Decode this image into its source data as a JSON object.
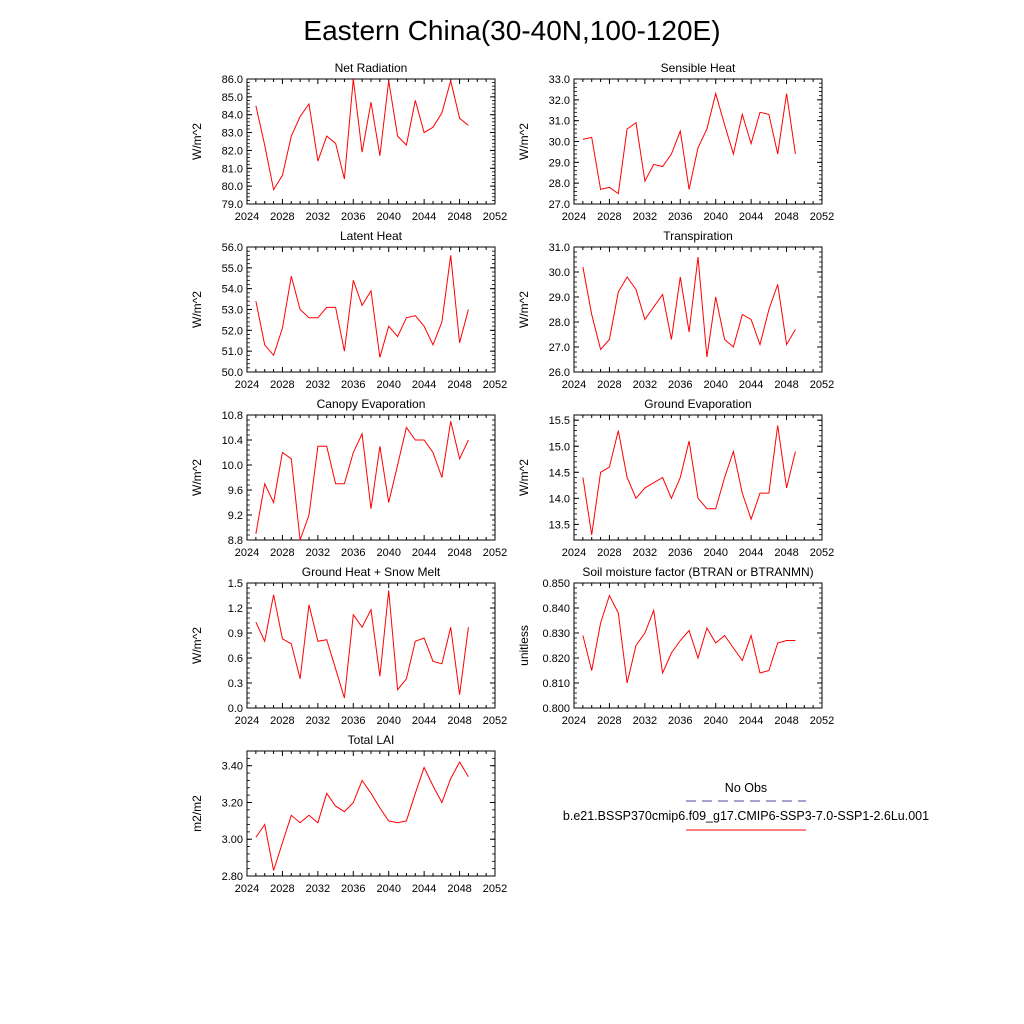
{
  "figure": {
    "title": "Eastern China(30-40N,100-120E)"
  },
  "legend": {
    "obs_label": "No Obs",
    "obs_color": "#4a4aa8",
    "model_label": "b.e21.BSSP370cmip6.f09_g17.CMIP6-SSP3-7.0-SSP1-2.6Lu.001",
    "model_color": "#ff0000"
  },
  "chart_data": [
    {
      "type": "line",
      "title": "Net Radiation",
      "ylabel": "W/m^2",
      "xlim": [
        2024,
        2052
      ],
      "xticks": [
        2024,
        2028,
        2032,
        2036,
        2040,
        2044,
        2048,
        2052
      ],
      "ylim": [
        79.0,
        86.0
      ],
      "yticks": [
        "79.0",
        "80.0",
        "81.0",
        "82.0",
        "83.0",
        "84.0",
        "85.0",
        "86.0"
      ],
      "x": [
        2025,
        2026,
        2027,
        2028,
        2029,
        2030,
        2031,
        2032,
        2033,
        2034,
        2035,
        2036,
        2037,
        2038,
        2039,
        2040,
        2041,
        2042,
        2043,
        2044,
        2045,
        2046,
        2047,
        2048,
        2049
      ],
      "series": [
        {
          "color": "#ff0000",
          "values": [
            84.5,
            82.3,
            79.8,
            80.6,
            82.8,
            83.9,
            84.6,
            81.4,
            82.8,
            82.4,
            80.4,
            86.0,
            81.9,
            84.7,
            81.7,
            85.9,
            82.8,
            82.3,
            84.8,
            83.0,
            83.3,
            84.1,
            85.9,
            83.8,
            83.4
          ]
        }
      ]
    },
    {
      "type": "line",
      "title": "Sensible Heat",
      "ylabel": "W/m^2",
      "xlim": [
        2024,
        2052
      ],
      "xticks": [
        2024,
        2028,
        2032,
        2036,
        2040,
        2044,
        2048,
        2052
      ],
      "ylim": [
        27.0,
        33.0
      ],
      "yticks": [
        "27.0",
        "28.0",
        "29.0",
        "30.0",
        "31.0",
        "32.0",
        "33.0"
      ],
      "x": [
        2025,
        2026,
        2027,
        2028,
        2029,
        2030,
        2031,
        2032,
        2033,
        2034,
        2035,
        2036,
        2037,
        2038,
        2039,
        2040,
        2041,
        2042,
        2043,
        2044,
        2045,
        2046,
        2047,
        2048,
        2049
      ],
      "series": [
        {
          "color": "#ff0000",
          "values": [
            30.1,
            30.2,
            27.7,
            27.8,
            27.5,
            30.6,
            30.9,
            28.1,
            28.9,
            28.8,
            29.4,
            30.5,
            27.7,
            29.7,
            30.6,
            32.3,
            30.8,
            29.4,
            31.3,
            29.9,
            31.4,
            31.3,
            29.4,
            32.3,
            29.4
          ]
        }
      ]
    },
    {
      "type": "line",
      "title": "Latent Heat",
      "ylabel": "W/m^2",
      "xlim": [
        2024,
        2052
      ],
      "xticks": [
        2024,
        2028,
        2032,
        2036,
        2040,
        2044,
        2048,
        2052
      ],
      "ylim": [
        50.0,
        56.0
      ],
      "yticks": [
        "50.0",
        "51.0",
        "52.0",
        "53.0",
        "54.0",
        "55.0",
        "56.0"
      ],
      "x": [
        2025,
        2026,
        2027,
        2028,
        2029,
        2030,
        2031,
        2032,
        2033,
        2034,
        2035,
        2036,
        2037,
        2038,
        2039,
        2040,
        2041,
        2042,
        2043,
        2044,
        2045,
        2046,
        2047,
        2048,
        2049
      ],
      "series": [
        {
          "color": "#ff0000",
          "values": [
            53.4,
            51.3,
            50.8,
            52.1,
            54.6,
            53.0,
            52.6,
            52.6,
            53.1,
            53.1,
            51.0,
            54.4,
            53.2,
            53.9,
            50.7,
            52.2,
            51.7,
            52.6,
            52.7,
            52.2,
            51.3,
            52.4,
            55.6,
            51.4,
            53.0
          ]
        }
      ]
    },
    {
      "type": "line",
      "title": "Transpiration",
      "ylabel": "W/m^2",
      "xlim": [
        2024,
        2052
      ],
      "xticks": [
        2024,
        2028,
        2032,
        2036,
        2040,
        2044,
        2048,
        2052
      ],
      "ylim": [
        26.0,
        31.0
      ],
      "yticks": [
        "26.0",
        "27.0",
        "28.0",
        "29.0",
        "30.0",
        "31.0"
      ],
      "x": [
        2025,
        2026,
        2027,
        2028,
        2029,
        2030,
        2031,
        2032,
        2033,
        2034,
        2035,
        2036,
        2037,
        2038,
        2039,
        2040,
        2041,
        2042,
        2043,
        2044,
        2045,
        2046,
        2047,
        2048,
        2049
      ],
      "series": [
        {
          "color": "#ff0000",
          "values": [
            30.2,
            28.3,
            26.9,
            27.3,
            29.2,
            29.8,
            29.3,
            28.1,
            28.6,
            29.1,
            27.3,
            29.8,
            27.6,
            30.6,
            26.6,
            29.0,
            27.3,
            27.0,
            28.3,
            28.1,
            27.1,
            28.5,
            29.5,
            27.1,
            27.7
          ]
        }
      ]
    },
    {
      "type": "line",
      "title": "Canopy Evaporation",
      "ylabel": "W/m^2",
      "xlim": [
        2024,
        2052
      ],
      "xticks": [
        2024,
        2028,
        2032,
        2036,
        2040,
        2044,
        2048,
        2052
      ],
      "ylim": [
        8.8,
        10.8
      ],
      "yticks": [
        "8.8",
        "9.2",
        "9.6",
        "10.0",
        "10.4",
        "10.8"
      ],
      "x": [
        2025,
        2026,
        2027,
        2028,
        2029,
        2030,
        2031,
        2032,
        2033,
        2034,
        2035,
        2036,
        2037,
        2038,
        2039,
        2040,
        2041,
        2042,
        2043,
        2044,
        2045,
        2046,
        2047,
        2048,
        2049
      ],
      "series": [
        {
          "color": "#ff0000",
          "values": [
            8.9,
            9.7,
            9.4,
            10.2,
            10.1,
            8.8,
            9.2,
            10.3,
            10.3,
            9.7,
            9.7,
            10.2,
            10.5,
            9.3,
            10.3,
            9.4,
            10.0,
            10.6,
            10.4,
            10.4,
            10.2,
            9.8,
            10.7,
            10.1,
            10.4
          ]
        }
      ]
    },
    {
      "type": "line",
      "title": "Ground Evaporation",
      "ylabel": "W/m^2",
      "xlim": [
        2024,
        2052
      ],
      "xticks": [
        2024,
        2028,
        2032,
        2036,
        2040,
        2044,
        2048,
        2052
      ],
      "ylim": [
        13.2,
        15.6
      ],
      "yticks": [
        "13.5",
        "14.0",
        "14.5",
        "15.0",
        "15.5"
      ],
      "x": [
        2025,
        2026,
        2027,
        2028,
        2029,
        2030,
        2031,
        2032,
        2033,
        2034,
        2035,
        2036,
        2037,
        2038,
        2039,
        2040,
        2041,
        2042,
        2043,
        2044,
        2045,
        2046,
        2047,
        2048,
        2049
      ],
      "series": [
        {
          "color": "#ff0000",
          "values": [
            14.4,
            13.3,
            14.5,
            14.6,
            15.3,
            14.4,
            14.0,
            14.2,
            14.3,
            14.4,
            14.0,
            14.4,
            15.1,
            14.0,
            13.8,
            13.8,
            14.4,
            14.9,
            14.1,
            13.6,
            14.1,
            14.1,
            15.4,
            14.2,
            14.9
          ]
        }
      ]
    },
    {
      "type": "line",
      "title": "Ground Heat + Snow Melt",
      "ylabel": "W/m^2",
      "xlim": [
        2024,
        2052
      ],
      "xticks": [
        2024,
        2028,
        2032,
        2036,
        2040,
        2044,
        2048,
        2052
      ],
      "ylim": [
        0.0,
        1.5
      ],
      "yticks": [
        "0.0",
        "0.3",
        "0.6",
        "0.9",
        "1.2",
        "1.5"
      ],
      "x": [
        2025,
        2026,
        2027,
        2028,
        2029,
        2030,
        2031,
        2032,
        2033,
        2034,
        2035,
        2036,
        2037,
        2038,
        2039,
        2040,
        2041,
        2042,
        2043,
        2044,
        2045,
        2046,
        2047,
        2048,
        2049
      ],
      "series": [
        {
          "color": "#ff0000",
          "values": [
            1.03,
            0.8,
            1.36,
            0.83,
            0.77,
            0.35,
            1.24,
            0.8,
            0.82,
            0.47,
            0.12,
            1.12,
            0.97,
            1.18,
            0.38,
            1.41,
            0.22,
            0.35,
            0.8,
            0.84,
            0.56,
            0.53,
            0.97,
            0.16,
            0.97
          ]
        }
      ]
    },
    {
      "type": "line",
      "title": "Soil moisture factor (BTRAN or BTRANMN)",
      "ylabel": "unitless",
      "xlim": [
        2024,
        2052
      ],
      "xticks": [
        2024,
        2028,
        2032,
        2036,
        2040,
        2044,
        2048,
        2052
      ],
      "ylim": [
        0.8,
        0.85
      ],
      "yticks": [
        "0.800",
        "0.810",
        "0.820",
        "0.830",
        "0.840",
        "0.850"
      ],
      "x": [
        2025,
        2026,
        2027,
        2028,
        2029,
        2030,
        2031,
        2032,
        2033,
        2034,
        2035,
        2036,
        2037,
        2038,
        2039,
        2040,
        2041,
        2042,
        2043,
        2044,
        2045,
        2046,
        2047,
        2048,
        2049
      ],
      "series": [
        {
          "color": "#ff0000",
          "values": [
            0.829,
            0.815,
            0.834,
            0.845,
            0.838,
            0.81,
            0.825,
            0.83,
            0.839,
            0.814,
            0.822,
            0.827,
            0.831,
            0.82,
            0.832,
            0.826,
            0.829,
            0.824,
            0.819,
            0.829,
            0.814,
            0.815,
            0.826,
            0.827,
            0.827
          ]
        }
      ]
    },
    {
      "type": "line",
      "title": "Total LAI",
      "ylabel": "m2/m2",
      "xlim": [
        2024,
        2052
      ],
      "xticks": [
        2024,
        2028,
        2032,
        2036,
        2040,
        2044,
        2048,
        2052
      ],
      "ylim": [
        2.8,
        3.48
      ],
      "yticks": [
        "2.80",
        "3.00",
        "3.20",
        "3.40"
      ],
      "x": [
        2025,
        2026,
        2027,
        2028,
        2029,
        2030,
        2031,
        2032,
        2033,
        2034,
        2035,
        2036,
        2037,
        2038,
        2039,
        2040,
        2041,
        2042,
        2043,
        2044,
        2045,
        2046,
        2047,
        2048,
        2049
      ],
      "series": [
        {
          "color": "#ff0000",
          "values": [
            3.01,
            3.08,
            2.83,
            2.98,
            3.13,
            3.09,
            3.13,
            3.09,
            3.25,
            3.18,
            3.15,
            3.2,
            3.32,
            3.25,
            3.17,
            3.1,
            3.09,
            3.1,
            3.25,
            3.39,
            3.29,
            3.2,
            3.33,
            3.42,
            3.34
          ]
        }
      ]
    }
  ]
}
